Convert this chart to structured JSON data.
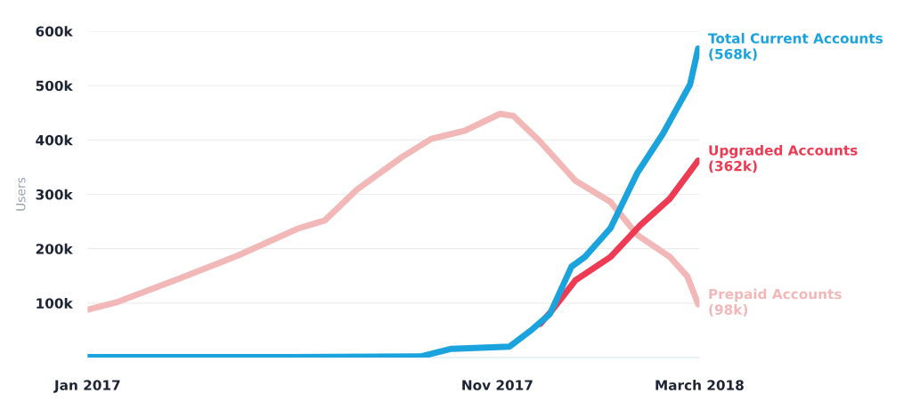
{
  "chart_data": {
    "type": "line",
    "ylabel": "Users",
    "xlim": [
      "2017-01-01",
      "2018-03-31"
    ],
    "xticks": [
      {
        "value": "2017-01-01",
        "label": "Jan 2017"
      },
      {
        "value": "2017-11-01",
        "label": "Nov 2017"
      },
      {
        "value": "2018-03-31",
        "label": "March 2018"
      }
    ],
    "ylim": [
      0,
      600000
    ],
    "yticks": [
      {
        "value": 100000,
        "label": "100k"
      },
      {
        "value": 200000,
        "label": "200k"
      },
      {
        "value": 300000,
        "label": "300k"
      },
      {
        "value": 400000,
        "label": "400k"
      },
      {
        "value": 500000,
        "label": "500k"
      },
      {
        "value": 600000,
        "label": "600k"
      }
    ],
    "grid": "y",
    "legend": false,
    "marker": "none",
    "line_style": "solid",
    "series": [
      {
        "name": "Prepaid Accounts",
        "color": "#f2b8b8",
        "x": [
          "2017-01-01",
          "2017-01-22",
          "2017-03-10",
          "2017-04-23",
          "2017-06-06",
          "2017-06-26",
          "2017-07-20",
          "2017-08-22",
          "2017-09-13",
          "2017-10-08",
          "2017-11-03",
          "2017-11-13",
          "2017-12-02",
          "2017-12-29",
          "2018-01-24",
          "2018-02-13",
          "2018-03-09",
          "2018-03-22",
          "2018-03-30"
        ],
        "values": [
          88000,
          101000,
          145000,
          188000,
          237000,
          252000,
          309000,
          368000,
          402000,
          417000,
          448000,
          444000,
          399000,
          325000,
          286000,
          225000,
          185000,
          149000,
          98000
        ],
        "value_labels": [
          null,
          null,
          null,
          null,
          null,
          null,
          null,
          null,
          null,
          null,
          null,
          null,
          null,
          null,
          null,
          null,
          null,
          null,
          "(98k)"
        ]
      },
      {
        "name": "Upgraded Accounts",
        "color": "#ee3a52",
        "x": [
          "2017-12-03",
          "2017-12-12",
          "2017-12-29",
          "2018-01-24",
          "2018-02-15",
          "2018-03-09",
          "2018-03-30"
        ],
        "values": [
          62000,
          88000,
          142000,
          185000,
          243000,
          292000,
          362000
        ],
        "value_labels": [
          null,
          null,
          null,
          null,
          null,
          null,
          "(362k)"
        ]
      },
      {
        "name": "Total Current Accounts",
        "color": "#1ba3dd",
        "x": [
          "2017-01-01",
          "2017-06-01",
          "2017-09-05",
          "2017-09-28",
          "2017-11-10",
          "2017-11-27",
          "2017-12-10",
          "2017-12-26",
          "2018-01-05",
          "2018-01-24",
          "2018-02-13",
          "2018-03-04",
          "2018-03-24",
          "2018-03-30"
        ],
        "values": [
          1000,
          1000,
          2000,
          16000,
          20000,
          52000,
          80000,
          167000,
          185000,
          238000,
          340000,
          412000,
          502000,
          568000
        ],
        "value_labels": [
          null,
          null,
          null,
          null,
          null,
          null,
          null,
          null,
          null,
          null,
          null,
          null,
          null,
          "(568k)"
        ]
      }
    ]
  }
}
